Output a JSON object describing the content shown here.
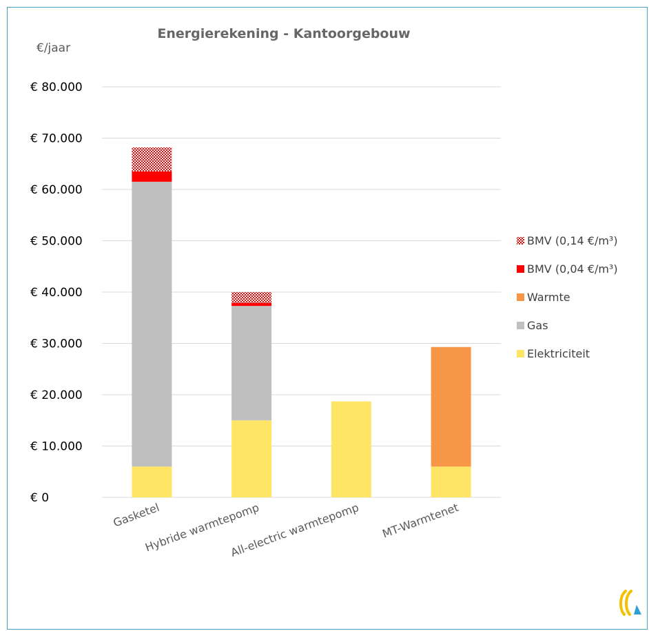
{
  "chart_data": {
    "type": "bar",
    "stacked": true,
    "title": "Energierekening - Kantoorgebouw",
    "ylabel": "€/jaar",
    "xlabel": "",
    "categories": [
      "Gasketel",
      "Hybride warmtepomp",
      "All-electric warmtepomp",
      "MT-Warmtenet"
    ],
    "ylim": [
      0,
      80000
    ],
    "yticks": [
      0,
      10000,
      20000,
      30000,
      40000,
      50000,
      60000,
      70000,
      80000
    ],
    "ytick_labels": [
      "€ 0",
      "€ 10.000",
      "€ 20.000",
      "€ 30.000",
      "€ 40.000",
      "€ 50.000",
      "€ 60.000",
      "€ 70.000",
      "€ 80.000"
    ],
    "grid": true,
    "legend_position": "right",
    "series": [
      {
        "name": "Elektriciteit",
        "color": "#ffe566",
        "pattern": "solid",
        "values": [
          6000,
          15000,
          18700,
          6000
        ]
      },
      {
        "name": "Gas",
        "color": "#bfbfbf",
        "pattern": "solid",
        "values": [
          55500,
          22300,
          0,
          0
        ]
      },
      {
        "name": "Warmte",
        "color": "#f79646",
        "pattern": "solid",
        "values": [
          0,
          0,
          0,
          23300
        ]
      },
      {
        "name": "BMV (0,04 €/m³)",
        "color": "#ff0000",
        "pattern": "solid",
        "values": [
          2000,
          600,
          0,
          0
        ]
      },
      {
        "name": "BMV (0,14 €/m³)",
        "color": "#ff0000",
        "pattern": "checker",
        "values": [
          4700,
          2100,
          0,
          0
        ]
      }
    ]
  },
  "logo_icon": "brand-logo-icon"
}
